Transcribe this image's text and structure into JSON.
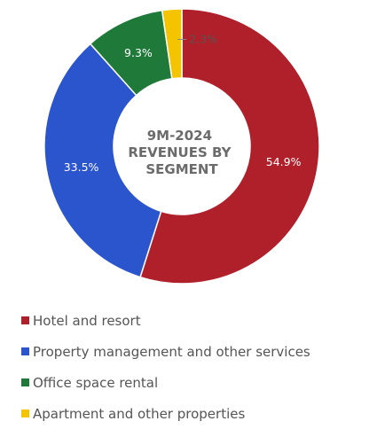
{
  "chart_data": {
    "type": "pie",
    "variant": "donut",
    "title": "9M-2024 REVENUES BY SEGMENT",
    "title_lines": [
      "9M-2024",
      "REVENUES BY",
      "SEGMENT"
    ],
    "legend_position": "bottom",
    "slices": [
      {
        "name": "Hotel and resort",
        "value": 54.9,
        "label": "54.9%",
        "color": "#b0202b"
      },
      {
        "name": "Property management and other services",
        "value": 33.5,
        "label": "33.5%",
        "color": "#2b55cc"
      },
      {
        "name": "Office space rental",
        "value": 9.3,
        "label": "9.3%",
        "color": "#1f7a3a"
      },
      {
        "name": "Apartment and other properties",
        "value": 2.3,
        "label": "2.3%",
        "color": "#f5c400"
      }
    ]
  }
}
